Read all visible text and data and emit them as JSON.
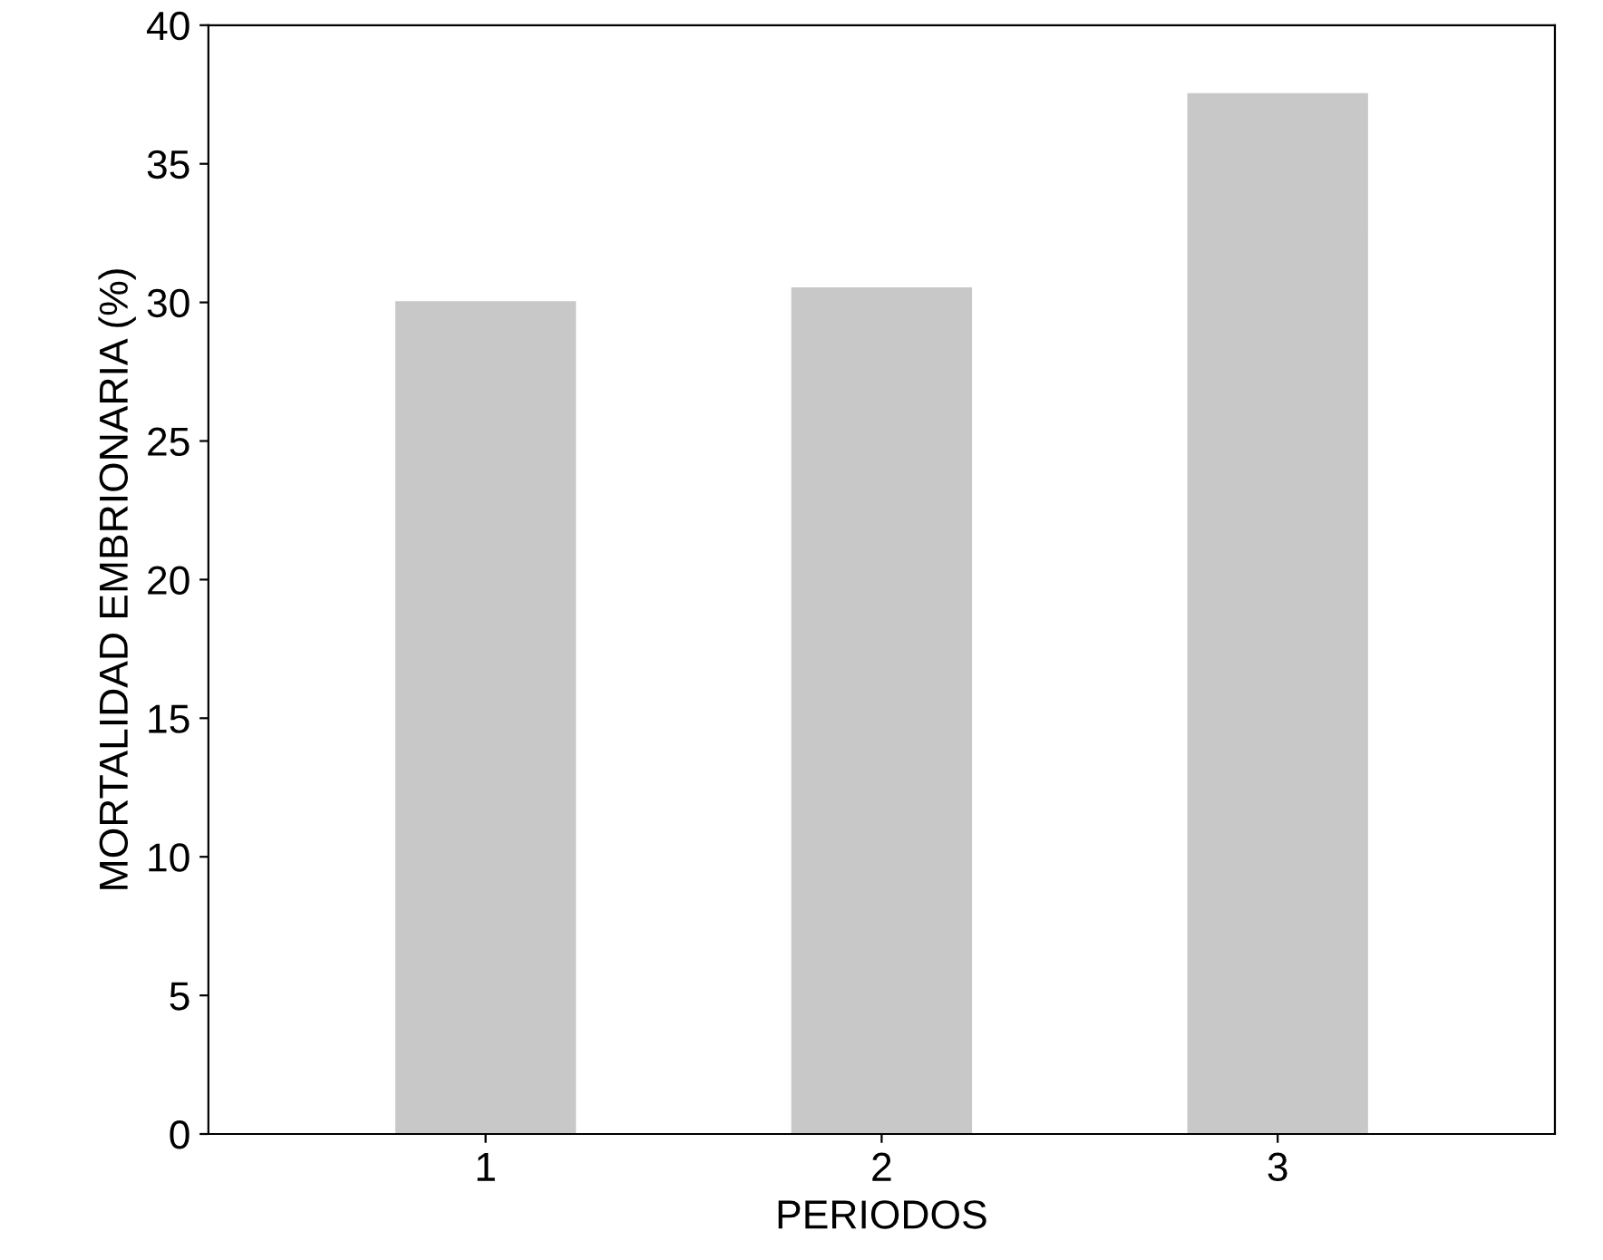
{
  "chart_data": {
    "type": "bar",
    "xlabel": "PERIODOS",
    "ylabel": "MORTALIDAD EMBRIONARIA (%)",
    "categories": [
      "1",
      "2",
      "3"
    ],
    "values": [
      30,
      30.5,
      37.5
    ],
    "color": "#c8c8c8",
    "ylim": [
      0,
      40
    ],
    "yticks": [
      0,
      5,
      10,
      15,
      20,
      25,
      30,
      35,
      40
    ],
    "grid": false,
    "legend": false
  }
}
